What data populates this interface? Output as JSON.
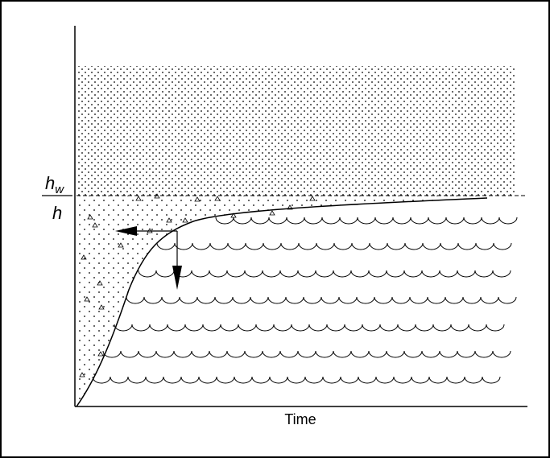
{
  "y_label": {
    "numerator": "h",
    "subscript": "w",
    "denominator": "h"
  },
  "x_label": "Time"
}
